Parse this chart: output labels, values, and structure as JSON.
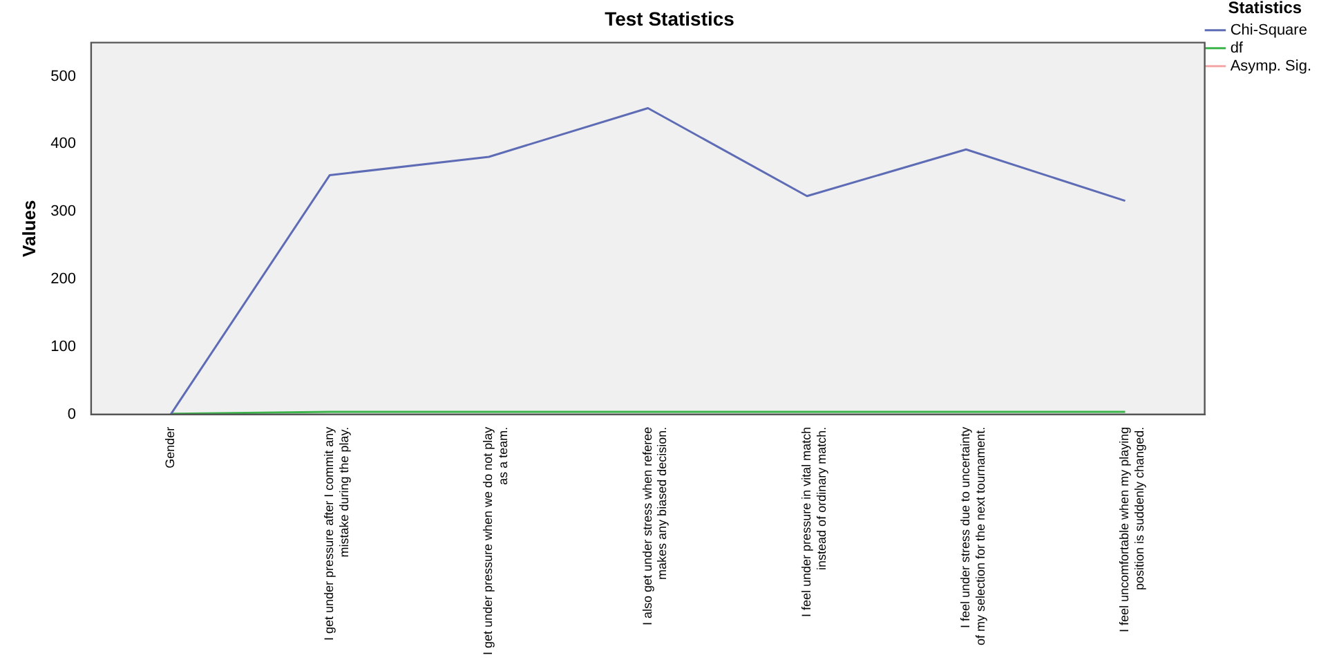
{
  "chart_data": {
    "type": "line",
    "title": "Test Statistics",
    "ylabel": "Values",
    "legend_title": "Statistics",
    "legend": "top right",
    "grid": false,
    "marker": "none",
    "categories": [
      "Gender",
      "I get under pressure after I commit any mistake during the play.",
      "I get under pressure when we do not play as a team.",
      "I also get under stress when referee makes any biased decision.",
      "I feel under pressure in vital match instead of ordinary match.",
      "I feel under stress due to uncertainty of my selection for the next tournament.",
      "I feel uncomfortable when my playing position is suddenly changed."
    ],
    "ylim": [
      0,
      550
    ],
    "yticks": [
      0,
      100,
      200,
      300,
      400,
      500
    ],
    "series": [
      {
        "name": "Chi-Square",
        "color": "#5e6bb5",
        "values": [
          0,
          354,
          381,
          453,
          323,
          392,
          316
        ]
      },
      {
        "name": "df",
        "color": "#3bb54a",
        "values": [
          1,
          4,
          4,
          4,
          4,
          4,
          4
        ]
      },
      {
        "name": "Asymp. Sig.",
        "color": "#f4a6a6",
        "values": [
          null,
          null,
          null,
          null,
          null,
          null,
          null
        ]
      }
    ]
  }
}
